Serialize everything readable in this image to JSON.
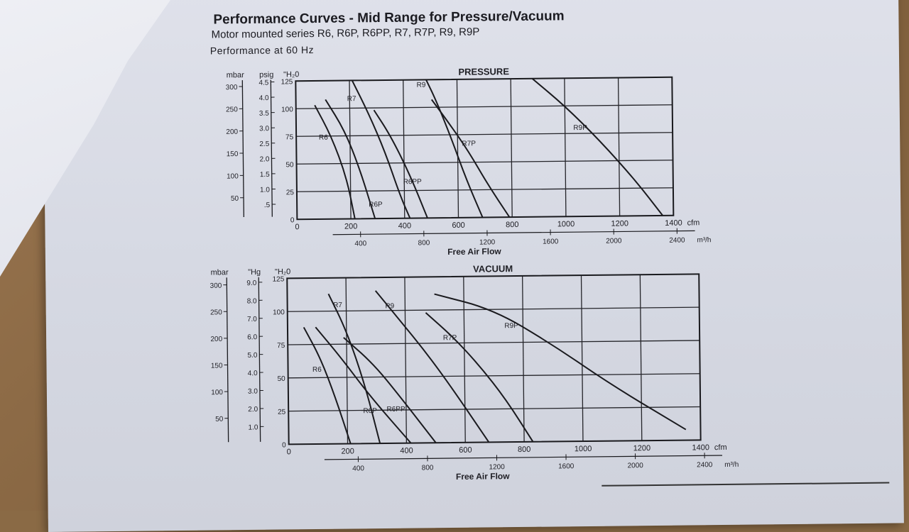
{
  "header": {
    "title": "Performance Curves - Mid Range for Pressure/Vacuum",
    "subtitle": "Motor mounted series R6, R6P, R6PP, R7, R7P, R9, R9P",
    "frequency": "Performance at 60 Hz"
  },
  "chart_data": [
    {
      "type": "line",
      "title": "PRESSURE",
      "xlabel": "Free Air Flow",
      "x_unit": "cfm",
      "x_unit_secondary": "m³/h",
      "xlim": [
        0,
        1400
      ],
      "ylim": [
        0,
        125
      ],
      "y_unit": "\"H₂0",
      "x_ticks": [
        "0",
        "200",
        "400",
        "600",
        "800",
        "1000",
        "1200",
        "1400"
      ],
      "x_ticks_secondary": [
        "400",
        "800",
        "1200",
        "1600",
        "2000",
        "2400"
      ],
      "y_ticks": [
        "0",
        "25",
        "50",
        "75",
        "100",
        "125"
      ],
      "aux_axes": [
        {
          "unit": "mbar",
          "ticks": [
            "50",
            "100",
            "150",
            "200",
            "250",
            "300"
          ]
        },
        {
          "unit": "psig",
          "ticks": [
            ".5",
            "1.0",
            "1.5",
            "2.0",
            "2.5",
            "3.0",
            "3.5",
            "4.0",
            "4.5"
          ]
        }
      ],
      "series": [
        {
          "name": "R6",
          "x": [
            70,
            130,
            185,
            215
          ],
          "y": [
            103,
            75,
            38,
            0
          ]
        },
        {
          "name": "R6P",
          "x": [
            110,
            180,
            235,
            290
          ],
          "y": [
            108,
            80,
            45,
            0
          ]
        },
        {
          "name": "R7",
          "x": [
            210,
            270,
            330,
            385,
            420
          ],
          "y": [
            125,
            95,
            60,
            20,
            0
          ]
        },
        {
          "name": "R6PP",
          "x": [
            290,
            350,
            420,
            485
          ],
          "y": [
            98,
            75,
            40,
            0
          ]
        },
        {
          "name": "R9",
          "x": [
            485,
            520,
            575,
            630,
            690
          ],
          "y": [
            125,
            107,
            73,
            35,
            0
          ]
        },
        {
          "name": "R7P",
          "x": [
            505,
            570,
            640,
            710,
            790
          ],
          "y": [
            107,
            85,
            60,
            30,
            0
          ]
        },
        {
          "name": "R9P",
          "x": [
            880,
            1000,
            1130,
            1260,
            1360
          ],
          "y": [
            125,
            100,
            68,
            32,
            0
          ]
        }
      ]
    },
    {
      "type": "line",
      "title": "VACUUM",
      "xlabel": "Free Air Flow",
      "x_unit": "cfm",
      "x_unit_secondary": "m³/h",
      "xlim": [
        0,
        1400
      ],
      "ylim": [
        0,
        125
      ],
      "y_unit": "\"H₂0",
      "x_ticks": [
        "0",
        "200",
        "400",
        "600",
        "800",
        "1000",
        "1200",
        "1400"
      ],
      "x_ticks_secondary": [
        "400",
        "800",
        "1200",
        "1600",
        "2000",
        "2400"
      ],
      "y_ticks": [
        "0",
        "25",
        "50",
        "75",
        "100",
        "125"
      ],
      "aux_axes": [
        {
          "unit": "mbar",
          "ticks": [
            "50",
            "100",
            "150",
            "200",
            "250",
            "300"
          ]
        },
        {
          "unit": "\"Hg",
          "ticks": [
            "1.0",
            "2.0",
            "3.0",
            "4.0",
            "5.0",
            "6.0",
            "7.0",
            "8.0",
            "9.0"
          ]
        }
      ],
      "series": [
        {
          "name": "R6",
          "x": [
            55,
            110,
            160,
            210
          ],
          "y": [
            88,
            65,
            35,
            0
          ]
        },
        {
          "name": "R7",
          "x": [
            140,
            200,
            260,
            310
          ],
          "y": [
            113,
            85,
            45,
            0
          ]
        },
        {
          "name": "R6P",
          "x": [
            95,
            180,
            280,
            415
          ],
          "y": [
            88,
            65,
            35,
            0
          ]
        },
        {
          "name": "R6PP",
          "x": [
            190,
            290,
            380,
            500
          ],
          "y": [
            80,
            60,
            35,
            0
          ]
        },
        {
          "name": "R9",
          "x": [
            300,
            380,
            470,
            560,
            680
          ],
          "y": [
            115,
            93,
            68,
            40,
            0
          ]
        },
        {
          "name": "R7P",
          "x": [
            470,
            560,
            650,
            740,
            830
          ],
          "y": [
            98,
            80,
            58,
            32,
            0
          ]
        },
        {
          "name": "R9P",
          "x": [
            500,
            700,
            900,
            1100,
            1350
          ],
          "y": [
            112,
            100,
            73,
            42,
            8
          ]
        }
      ]
    }
  ]
}
